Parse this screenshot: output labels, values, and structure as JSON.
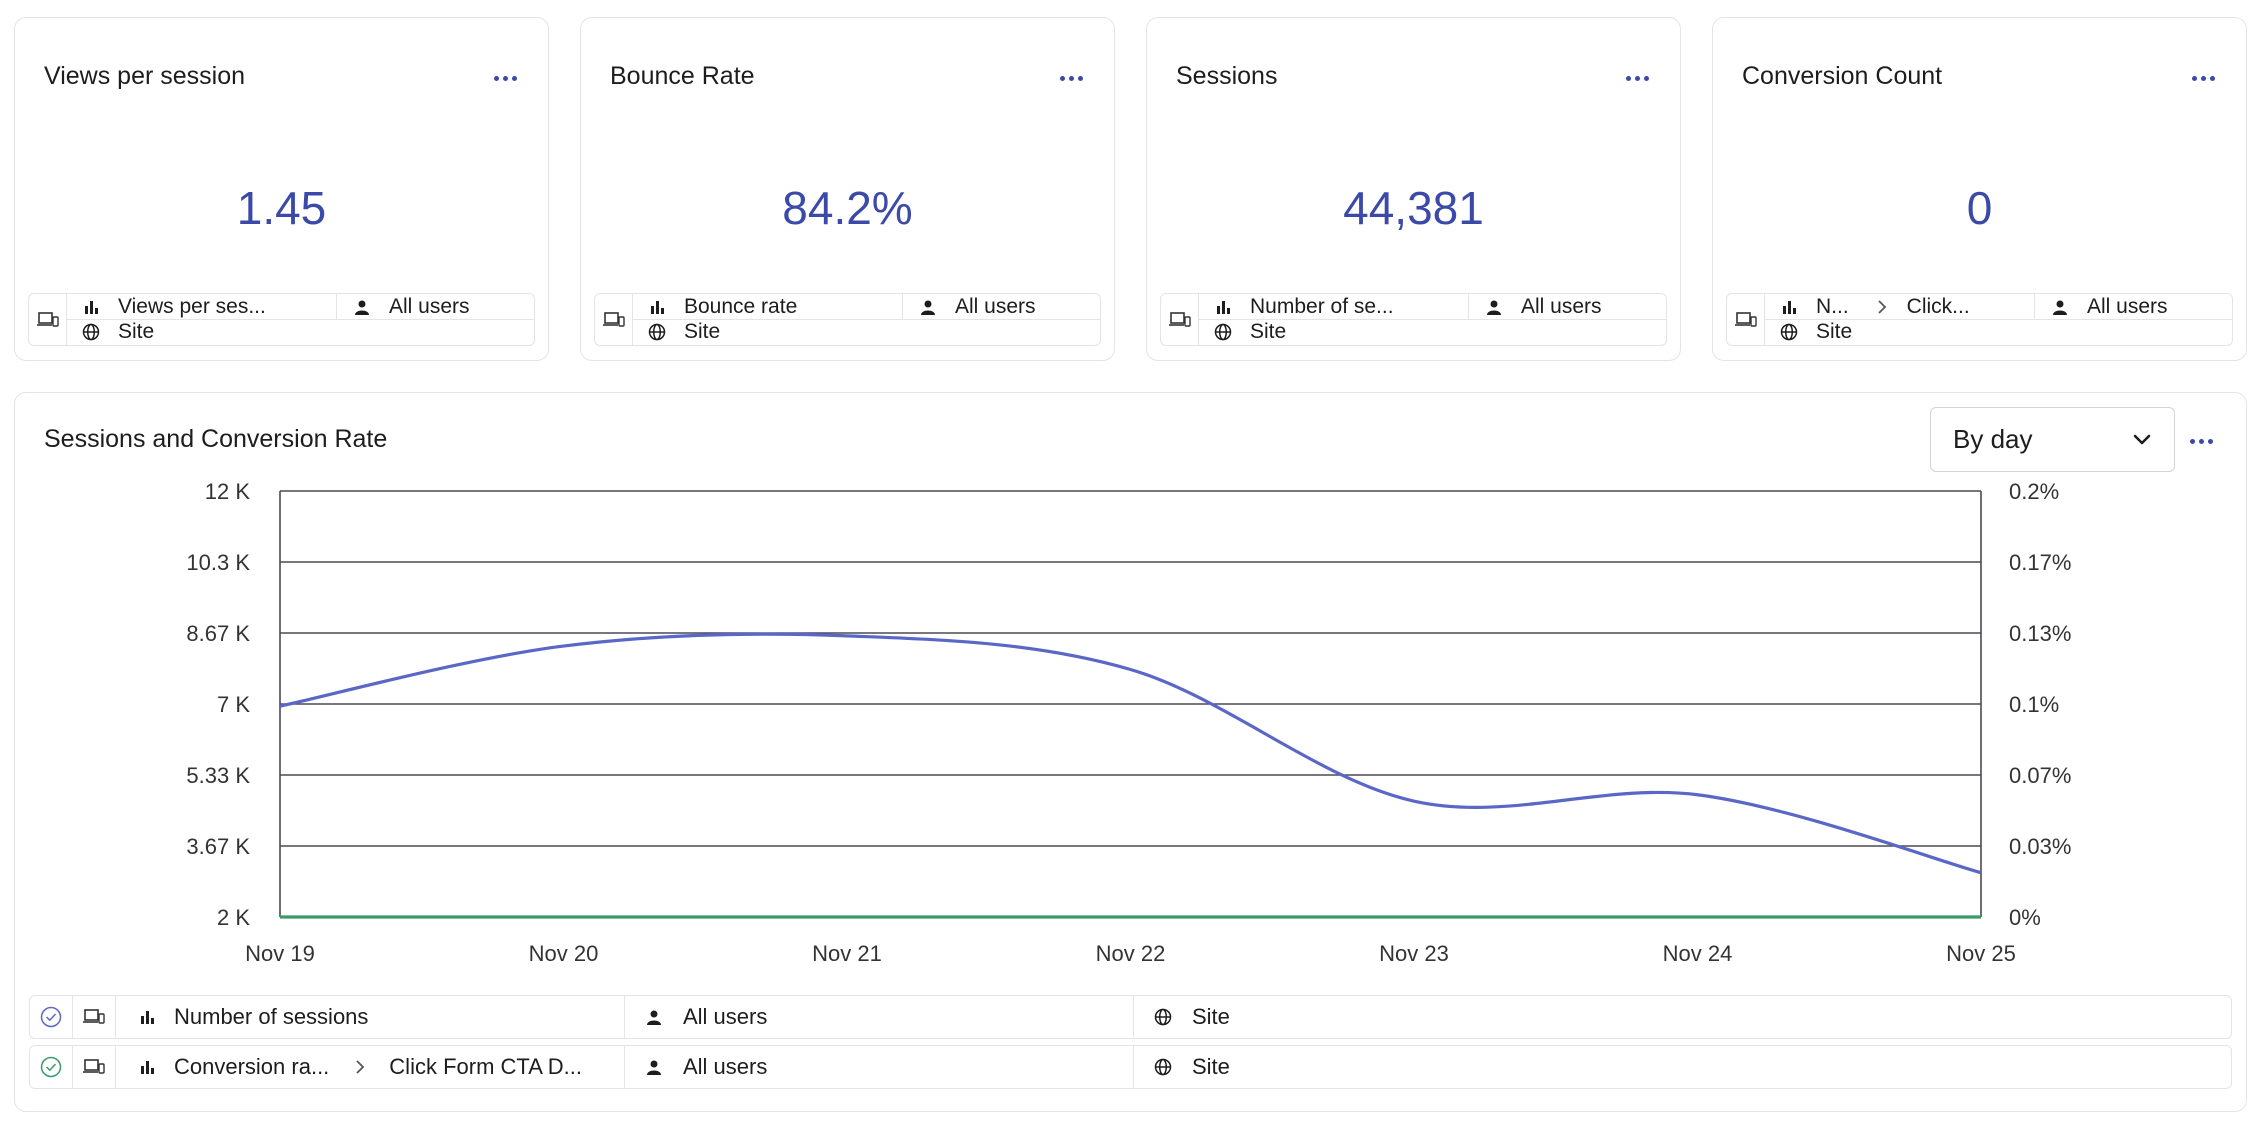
{
  "cards": [
    {
      "title": "Views per session",
      "value": "1.45",
      "metric": "Views per ses...",
      "metric2": "",
      "segment": "All users",
      "scope": "Site"
    },
    {
      "title": "Bounce Rate",
      "value": "84.2%",
      "metric": "Bounce rate",
      "metric2": "",
      "segment": "All users",
      "scope": "Site"
    },
    {
      "title": "Sessions",
      "value": "44,381",
      "metric": "Number of se...",
      "metric2": "",
      "segment": "All users",
      "scope": "Site"
    },
    {
      "title": "Conversion Count",
      "value": "0",
      "metric": "N...",
      "metric2": "Click...",
      "segment": "All users",
      "scope": "Site"
    }
  ],
  "chart_panel": {
    "title": "Sessions and Conversion Rate",
    "granularity": "By day",
    "legend": [
      {
        "metric": "Number of sessions",
        "step": "",
        "segment": "All users",
        "scope": "Site",
        "color": "#5a67c7"
      },
      {
        "metric": "Conversion ra...",
        "step": "Click Form CTA D...",
        "segment": "All users",
        "scope": "Site",
        "color": "#3a9a6a"
      }
    ]
  },
  "chart_data": {
    "type": "line",
    "categories": [
      "Nov 19",
      "Nov 20",
      "Nov 21",
      "Nov 22",
      "Nov 23",
      "Nov 24",
      "Nov 25"
    ],
    "y_left_ticks": [
      "2 K",
      "3.67 K",
      "5.33 K",
      "7 K",
      "8.67 K",
      "10.3 K",
      "12 K"
    ],
    "y_right_ticks": [
      "0%",
      "0.03%",
      "0.07%",
      "0.1%",
      "0.13%",
      "0.17%",
      "0.2%"
    ],
    "ylim_left": [
      2000,
      12000
    ],
    "ylim_right": [
      0,
      0.2
    ],
    "grid": true,
    "series": [
      {
        "name": "Number of sessions",
        "axis": "left",
        "values": [
          6950,
          8360,
          8600,
          7810,
          4720,
          4870,
          3040
        ],
        "color": "#5a67c7"
      },
      {
        "name": "Conversion ra...",
        "axis": "right",
        "values": [
          0,
          0,
          0,
          0,
          0,
          0,
          0
        ],
        "color": "#3a9a6a"
      }
    ]
  }
}
